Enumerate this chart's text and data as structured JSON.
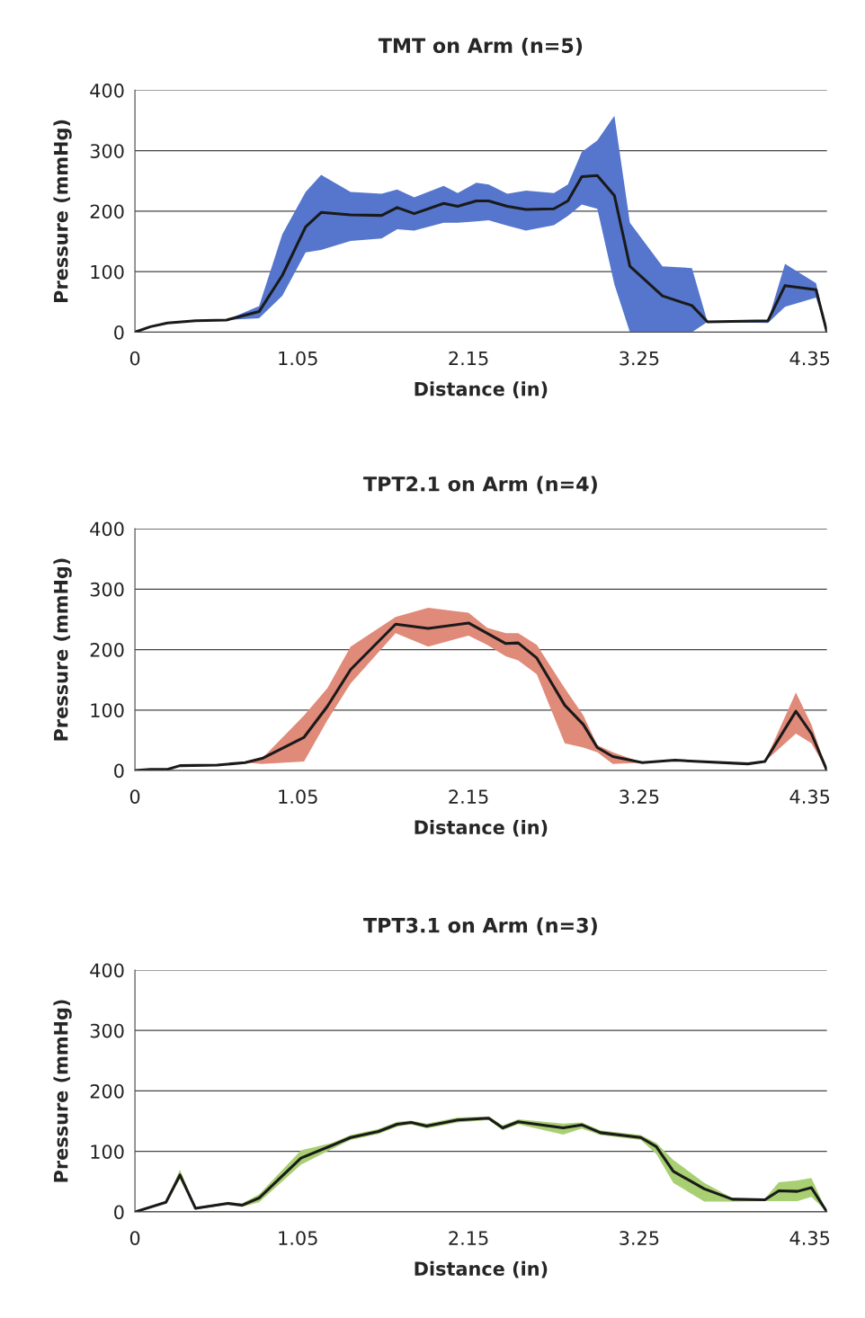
{
  "chart_data": [
    {
      "type": "line",
      "title": "TMT on Arm (n=5)",
      "xlabel": "Distance (in)",
      "ylabel": "Pressure (mmHg)",
      "xlim": [
        0,
        4.46
      ],
      "xticks": [
        0,
        1.05,
        2.15,
        3.25,
        4.35
      ],
      "ylim": [
        0,
        400
      ],
      "yticks": [
        0,
        100,
        200,
        300,
        400
      ],
      "grid": "y",
      "colors": [
        "#5576cc"
      ],
      "x": [
        0,
        0.1,
        0.21,
        0.39,
        0.59,
        0.8,
        0.95,
        1.1,
        1.2,
        1.39,
        1.59,
        1.69,
        1.8,
        1.99,
        2.08,
        2.2,
        2.28,
        2.4,
        2.52,
        2.7,
        2.79,
        2.88,
        2.98,
        3.09,
        3.19,
        3.4,
        3.59,
        3.69,
        4.08,
        4.19,
        4.39,
        4.46
      ],
      "series": [
        {
          "color": "#1a1a1a",
          "values": [
            0,
            9,
            15,
            19,
            20,
            34,
            94,
            174,
            198,
            194,
            193,
            206,
            196,
            213,
            208,
            217,
            217,
            208,
            203,
            204,
            217,
            257,
            259,
            226,
            109,
            60,
            44,
            17,
            19,
            77,
            70,
            0
          ],
          "upper": [
            0,
            9,
            15,
            19,
            20,
            43,
            162,
            232,
            260,
            232,
            229,
            236,
            223,
            242,
            230,
            247,
            244,
            229,
            234,
            230,
            244,
            298,
            317,
            358,
            181,
            109,
            106,
            17,
            19,
            113,
            81,
            0
          ],
          "lower": [
            0,
            9,
            15,
            19,
            20,
            23,
            60,
            132,
            136,
            151,
            155,
            170,
            168,
            181,
            181,
            183,
            185,
            176,
            168,
            177,
            192,
            211,
            204,
            79,
            0,
            0,
            0,
            17,
            15,
            42,
            57,
            0
          ]
        }
      ]
    },
    {
      "type": "line",
      "title": "TPT2.1 on Arm (n=4)",
      "xlabel": "Distance (in)",
      "ylabel": "Pressure (mmHg)",
      "xlim": [
        0,
        4.46
      ],
      "xticks": [
        0,
        1.05,
        2.15,
        3.25,
        4.35
      ],
      "ylim": [
        0,
        400
      ],
      "yticks": [
        0,
        100,
        200,
        300,
        400
      ],
      "grid": "y",
      "colors": [
        "#e08a7a"
      ],
      "x": [
        0,
        0.1,
        0.21,
        0.29,
        0.53,
        0.71,
        0.82,
        1.09,
        1.24,
        1.39,
        1.68,
        1.89,
        2.15,
        2.27,
        2.39,
        2.47,
        2.59,
        2.77,
        2.89,
        2.98,
        3.08,
        3.27,
        3.48,
        3.95,
        4.06,
        4.26,
        4.36,
        4.46
      ],
      "series": [
        {
          "color": "#1a1a1a",
          "values": [
            0,
            2,
            2,
            8,
            9,
            13,
            20,
            55,
            106,
            167,
            242,
            235,
            244,
            227,
            210,
            211,
            186,
            108,
            76,
            38,
            23,
            13,
            17,
            11,
            15,
            98,
            61,
            0
          ],
          "upper": [
            0,
            2,
            2,
            8,
            9,
            13,
            20,
            91,
            136,
            205,
            254,
            269,
            261,
            236,
            227,
            227,
            208,
            136,
            91,
            42,
            30,
            13,
            17,
            11,
            15,
            129,
            76,
            0
          ],
          "lower": [
            0,
            2,
            2,
            8,
            9,
            13,
            11,
            15,
            83,
            144,
            227,
            205,
            223,
            208,
            189,
            182,
            159,
            45,
            38,
            30,
            11,
            13,
            17,
            11,
            15,
            61,
            45,
            0
          ]
        }
      ]
    },
    {
      "type": "line",
      "title": "TPT3.1 on Arm (n=3)",
      "xlabel": "Distance (in)",
      "ylabel": "Pressure (mmHg)",
      "xlim": [
        0,
        4.46
      ],
      "xticks": [
        0,
        1.05,
        2.15,
        3.25,
        4.35
      ],
      "ylim": [
        0,
        400
      ],
      "yticks": [
        0,
        100,
        200,
        300,
        400
      ],
      "grid": "y",
      "colors": [
        "#a8cf72"
      ],
      "x": [
        0,
        0.2,
        0.29,
        0.39,
        0.6,
        0.69,
        0.8,
        1.07,
        1.27,
        1.39,
        1.57,
        1.69,
        1.78,
        1.88,
        2.08,
        2.28,
        2.37,
        2.47,
        2.76,
        2.88,
        3.0,
        3.26,
        3.36,
        3.47,
        3.67,
        3.85,
        4.06,
        4.15,
        4.27,
        4.36,
        4.46
      ],
      "series": [
        {
          "color": "#1a1a1a",
          "values": [
            0,
            16,
            61,
            6,
            14,
            11,
            23,
            89,
            110,
            123,
            133,
            145,
            148,
            142,
            152,
            155,
            139,
            149,
            139,
            144,
            131,
            123,
            108,
            67,
            38,
            21,
            20,
            35,
            34,
            40,
            0
          ],
          "upper": [
            0,
            18,
            70,
            8,
            16,
            14,
            29,
            102,
            114,
            127,
            137,
            149,
            151,
            146,
            156,
            158,
            143,
            153,
            146,
            148,
            135,
            127,
            114,
            86,
            48,
            23,
            22,
            49,
            52,
            56,
            0
          ],
          "lower": [
            0,
            14,
            54,
            4,
            12,
            8,
            16,
            78,
            104,
            119,
            129,
            141,
            145,
            138,
            148,
            152,
            135,
            145,
            128,
            138,
            127,
            119,
            96,
            48,
            17,
            17,
            18,
            18,
            18,
            25,
            0
          ]
        }
      ]
    }
  ]
}
